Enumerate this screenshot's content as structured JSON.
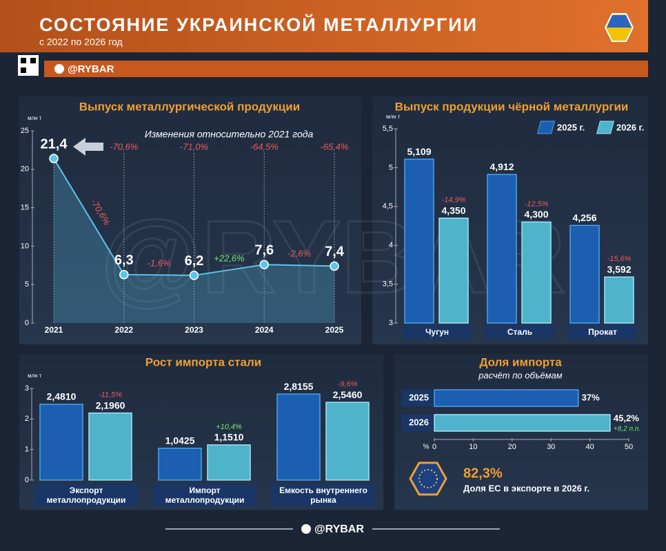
{
  "header": {
    "title": "СОСТОЯНИЕ УКРАИНСКОЙ МЕТАЛЛУРГИИ",
    "subtitle": "с 2022 по 2026 год",
    "brand": "@RYBAR"
  },
  "chart_data": [
    {
      "type": "line",
      "title": "Выпуск металлургической продукции",
      "y_label": "млн т",
      "annotation": "Изменения относительно 2021 года",
      "categories": [
        "2021",
        "2022",
        "2023",
        "2024",
        "2025"
      ],
      "values": [
        21.4,
        6.3,
        6.2,
        7.6,
        7.4
      ],
      "value_labels": [
        "21,4",
        "6,3",
        "6,2",
        "7,6",
        "7,4"
      ],
      "change_vs_2021": [
        "-70,6%",
        "-71,0%",
        "-64,5%",
        "-65,4%"
      ],
      "change_vs_previous": [
        "-70,6%",
        "-1,6%",
        "+22,6%",
        "-2,6%"
      ],
      "color": "#5cc4ea",
      "ylim": [
        0,
        25
      ],
      "yticks": [
        0,
        5,
        10,
        15,
        20,
        25
      ]
    },
    {
      "type": "bar",
      "title": "Выпуск продукции чёрной металлургии",
      "y_label": "млн т",
      "categories": [
        "Чугун",
        "Сталь",
        "Прокат"
      ],
      "series": [
        {
          "name": "2025 г.",
          "color": "#1c5eb0",
          "values": [
            5.109,
            4.912,
            4.256
          ],
          "value_labels": [
            "5,109",
            "4,912",
            "4,256"
          ]
        },
        {
          "name": "2026 г.",
          "color": "#4fb3cc",
          "values": [
            4.35,
            4.3,
            3.592
          ],
          "value_labels": [
            "4,350",
            "4,300",
            "3,592"
          ]
        }
      ],
      "change_labels": [
        "-14,9%",
        "-12,5%",
        "-15,6%"
      ],
      "ylim": [
        3,
        5.5
      ],
      "yticks": [
        3,
        {
          "value": 3.5,
          "label": "3,5"
        },
        4,
        {
          "value": 4.5,
          "label": "4,5"
        },
        5,
        {
          "value": 5.5,
          "label": "5,5"
        }
      ]
    },
    {
      "type": "bar",
      "title": "Рост импорта стали",
      "y_label": "млн т",
      "categories": [
        "Экспорт металлопродукции",
        "Импорт металлопродукции",
        "Емкость внутреннего рынка"
      ],
      "series": [
        {
          "color": "#1c5eb0",
          "values": [
            2.481,
            1.0425,
            2.8155
          ],
          "value_labels": [
            "2,4810",
            "1,0425",
            "2,8155"
          ]
        },
        {
          "color": "#4fb3cc",
          "values": [
            2.196,
            1.151,
            2.546
          ],
          "value_labels": [
            "2,1960",
            "1,1510",
            "2,5460"
          ]
        }
      ],
      "change_labels": [
        "-11,5%",
        "+10,4%",
        "-9,6%"
      ],
      "ylim": [
        0,
        3
      ],
      "yticks": [
        0,
        1,
        2,
        3
      ]
    },
    {
      "type": "hbar",
      "title": "Доля импорта",
      "subtitle": "расчёт по объёмам",
      "x_label": "%",
      "categories": [
        "2025",
        "2026"
      ],
      "values": [
        37,
        45.2
      ],
      "value_labels": [
        "37%",
        "45,2%"
      ],
      "annotation": "+8,2 п.п.",
      "color": "#3d9cc8",
      "xlim": [
        0,
        50
      ],
      "xticks": [
        0,
        10,
        20,
        30,
        40,
        50
      ]
    }
  ],
  "eu_share": {
    "value": "82,3%",
    "label": "Доля ЕС в экспорте в 2026 г."
  },
  "footer": {
    "brand": "@RYBAR"
  }
}
